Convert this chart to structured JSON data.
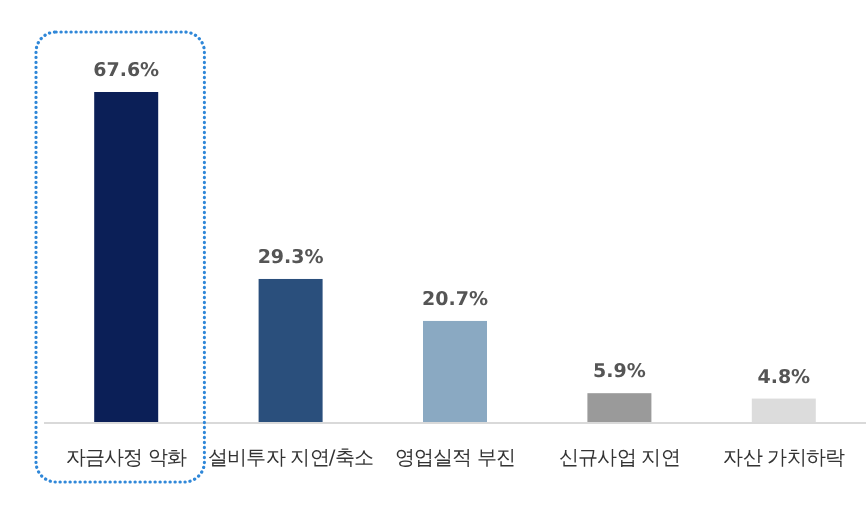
{
  "chart_data": {
    "type": "bar",
    "categories": [
      "자금사정 악화",
      "설비투자 지연/축소",
      "영업실적 부진",
      "신규사업 지연",
      "자산 가치하락"
    ],
    "values": [
      67.6,
      29.3,
      20.7,
      5.9,
      4.8
    ],
    "colors": [
      "#0b1f57",
      "#2a4f7c",
      "#8aa9c2",
      "#9a9a9a",
      "#dcdcdc"
    ],
    "value_labels": [
      "67.6%",
      "29.3%",
      "20.7%",
      "5.9%",
      "4.8%"
    ]
  }
}
